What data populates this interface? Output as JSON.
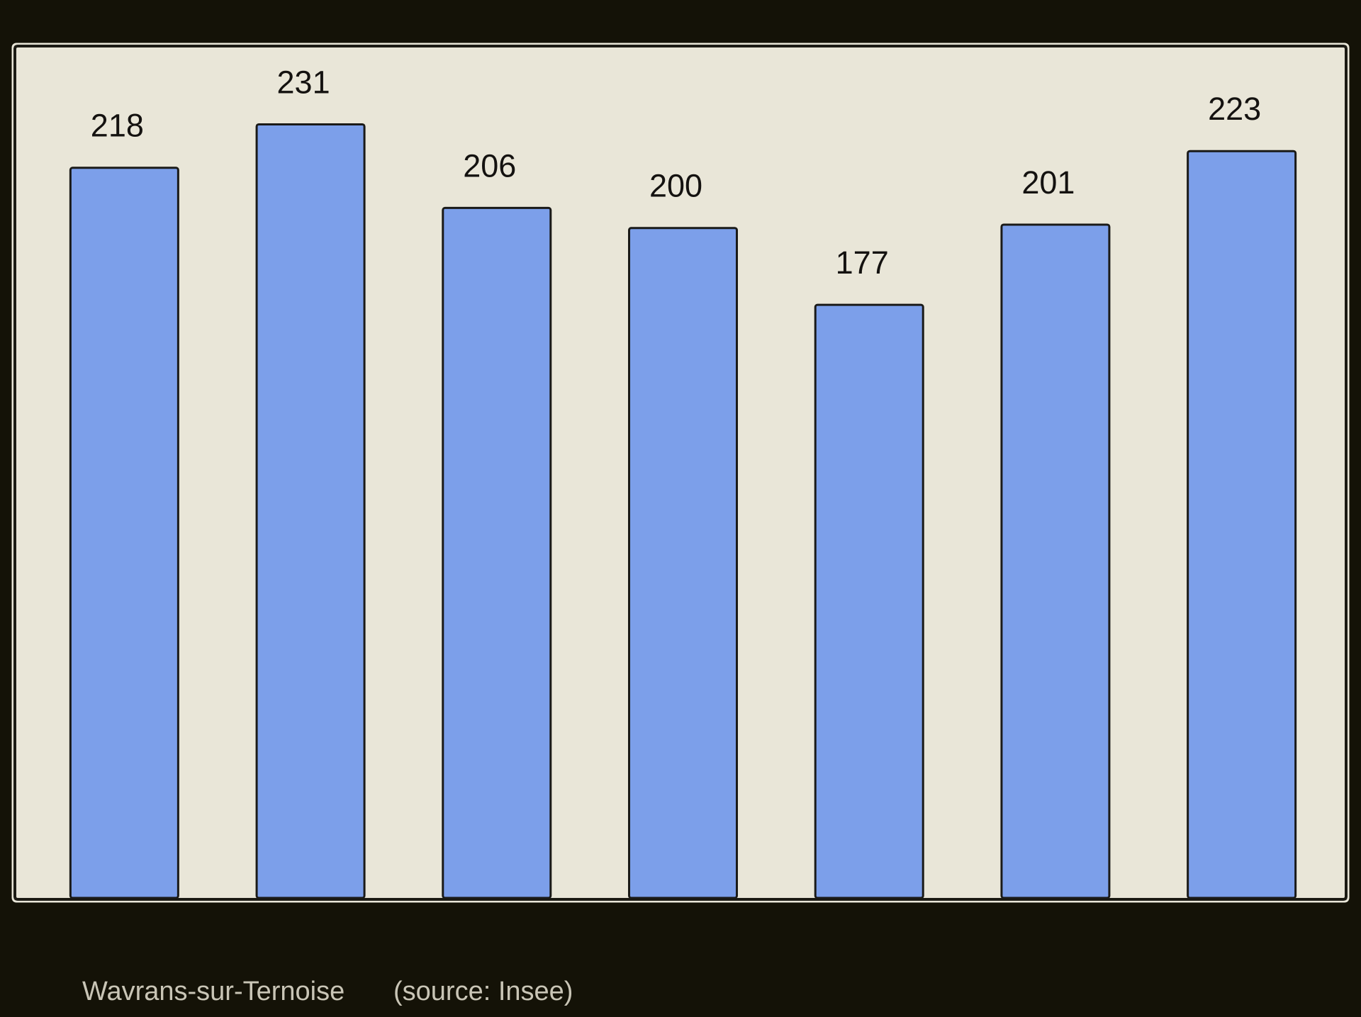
{
  "chart_data": {
    "type": "bar",
    "categories": [
      null,
      null,
      null,
      null,
      null,
      null,
      null
    ],
    "values": [
      218,
      231,
      206,
      200,
      177,
      201,
      223
    ],
    "color": "#7c9fea",
    "ylim": [
      0,
      254
    ],
    "caption": "Wavrans-sur-Ternoise",
    "source": "(source: Insee)"
  }
}
